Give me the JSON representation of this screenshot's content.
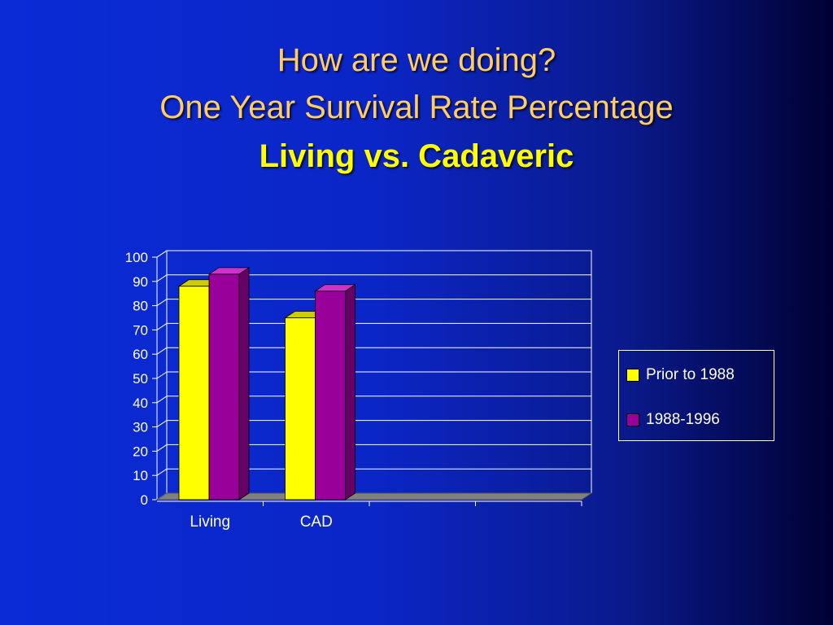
{
  "title": {
    "line1": "How are we doing?",
    "line2": "One Year Survival Rate Percentage",
    "line3": "Living vs. Cadaveric"
  },
  "colors": {
    "title": "#ffcc66",
    "highlight": "#ffff00",
    "series1": "#ffff00",
    "series2": "#990099"
  },
  "chart_data": {
    "type": "bar",
    "style": "3d-clustered-column",
    "categories": [
      "Living",
      "CAD"
    ],
    "series": [
      {
        "name": "Prior to 1988",
        "values": [
          88,
          75
        ]
      },
      {
        "name": "1988-1996",
        "values": [
          93,
          86
        ]
      }
    ],
    "ylim": [
      0,
      100
    ],
    "yticks": [
      0,
      10,
      20,
      30,
      40,
      50,
      60,
      70,
      80,
      90,
      100
    ],
    "grid": true,
    "legend": "right"
  }
}
